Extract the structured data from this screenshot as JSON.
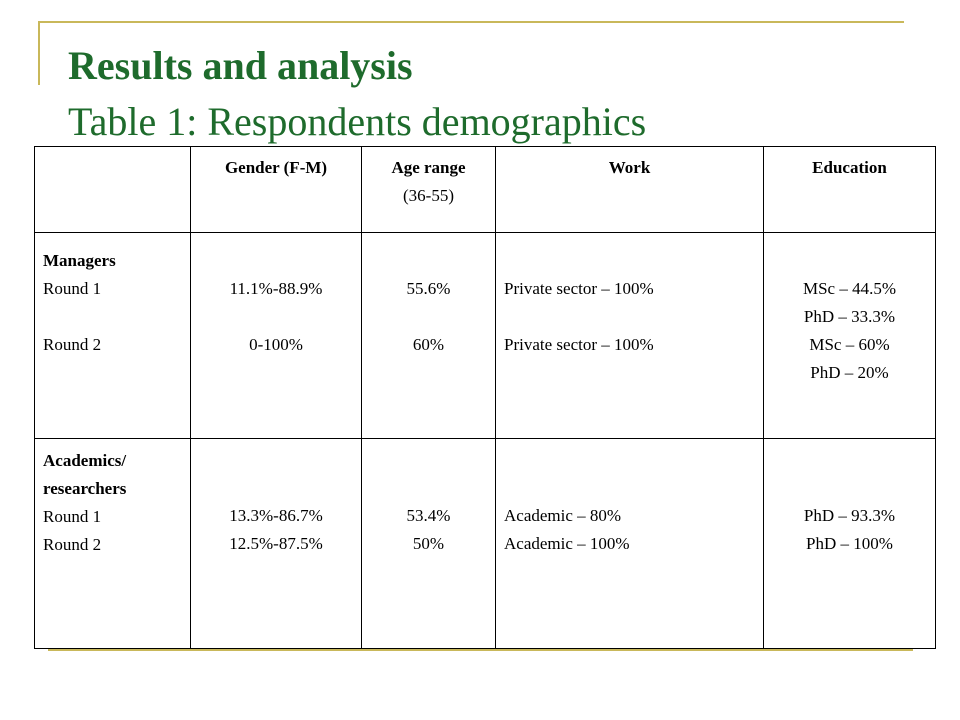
{
  "title": {
    "main": "Results and analysis",
    "subtitle": "Table 1: Respondents demographics"
  },
  "table": {
    "headers": {
      "gender": "Gender (F-M)",
      "age_title": "Age range",
      "age_sub": "(36-55)",
      "work": "Work",
      "education": "Education"
    },
    "managers": {
      "group": "Managers",
      "round1_label": "Round 1",
      "round2_label": "Round 2",
      "gender_r1": "11.1%-88.9%",
      "gender_r2": "0-100%",
      "age_r1": "55.6%",
      "age_r2": "60%",
      "work_r1": "Private sector – 100%",
      "work_r2": "Private sector – 100%",
      "education": [
        "MSc – 44.5%",
        "PhD – 33.3%",
        "MSc – 60%",
        "PhD – 20%"
      ]
    },
    "academics": {
      "group_line1": "Academics/",
      "group_line2": "researchers",
      "round1_label": "Round 1",
      "round2_label": "Round 2",
      "gender_r1": "13.3%-86.7%",
      "gender_r2": "12.5%-87.5%",
      "age_r1": "53.4%",
      "age_r2": "50%",
      "work_r1": "Academic – 80%",
      "work_r2": "Academic – 100%",
      "education_r1": "PhD – 93.3%",
      "education_r2": "PhD – 100%"
    }
  }
}
